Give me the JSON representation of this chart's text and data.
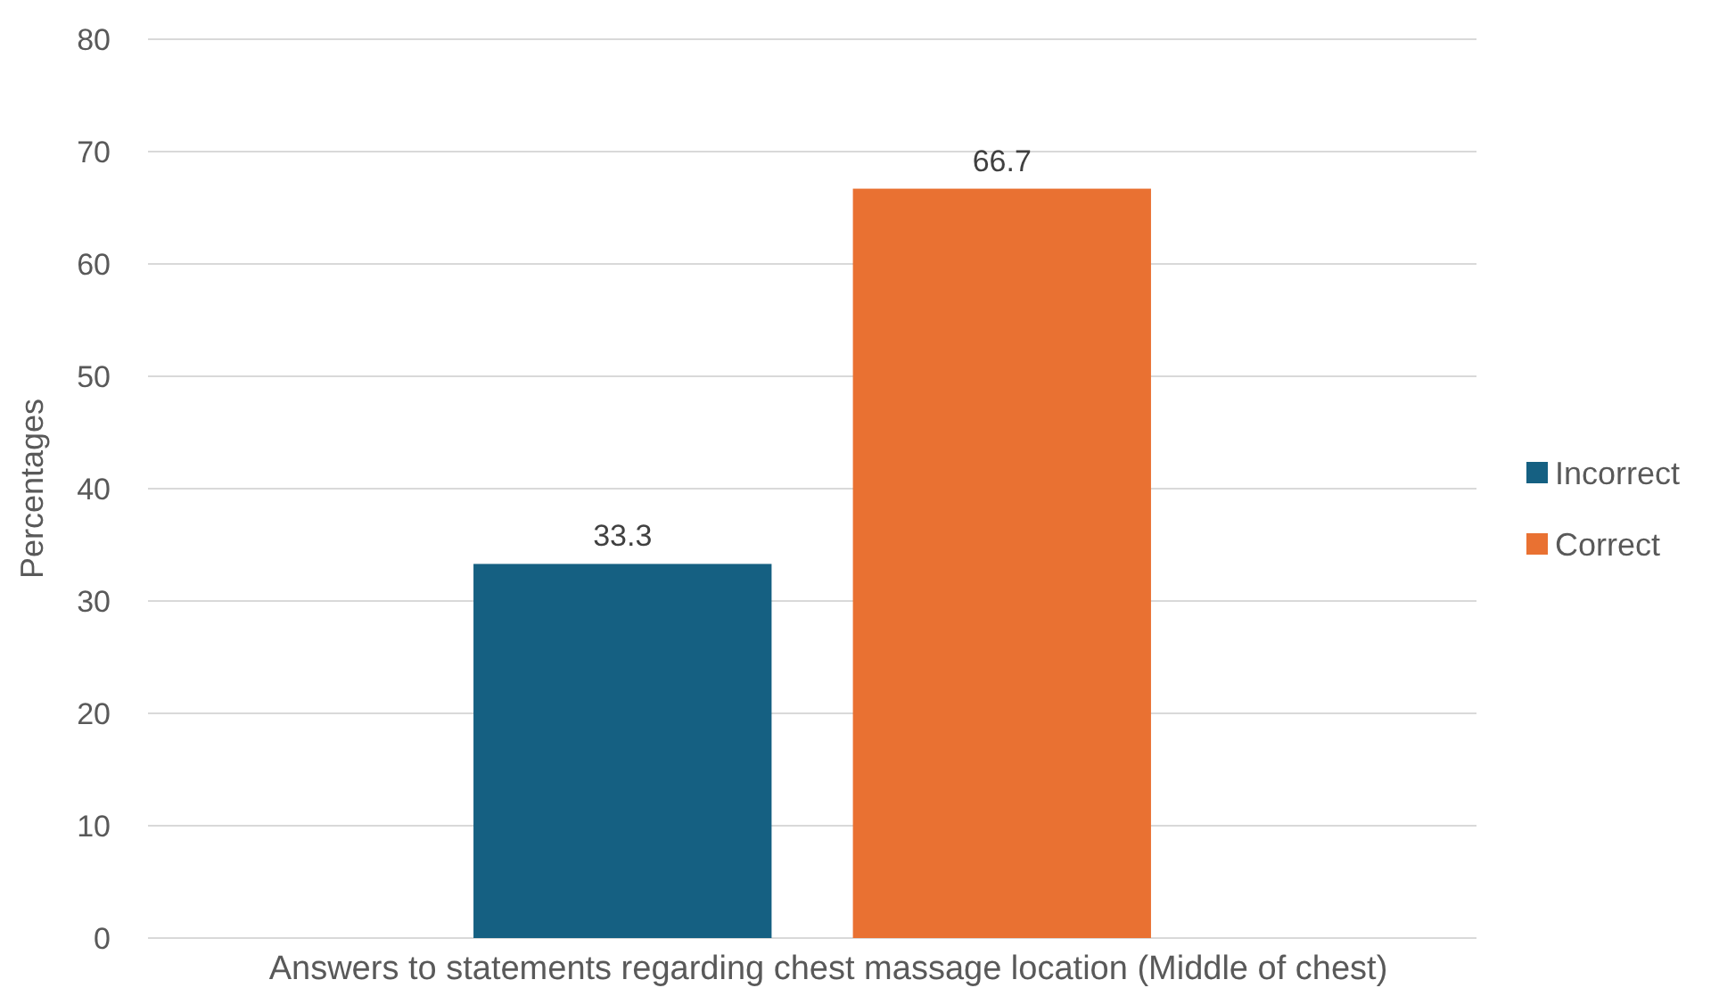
{
  "chart_data": {
    "type": "bar",
    "ylabel": "Percentages",
    "categories": [
      "Answers to statements regarding chest massage location (Middle of chest)"
    ],
    "series": [
      {
        "name": "Incorrect",
        "color": "#156082",
        "values": [
          33.3
        ]
      },
      {
        "name": "Correct",
        "color": "#e97132",
        "values": [
          66.7
        ]
      }
    ],
    "ylim": [
      0,
      80
    ],
    "yticks": [
      0,
      10,
      20,
      30,
      40,
      50,
      60,
      70,
      80
    ],
    "grid": "y",
    "legend": "right",
    "data_labels": true
  }
}
